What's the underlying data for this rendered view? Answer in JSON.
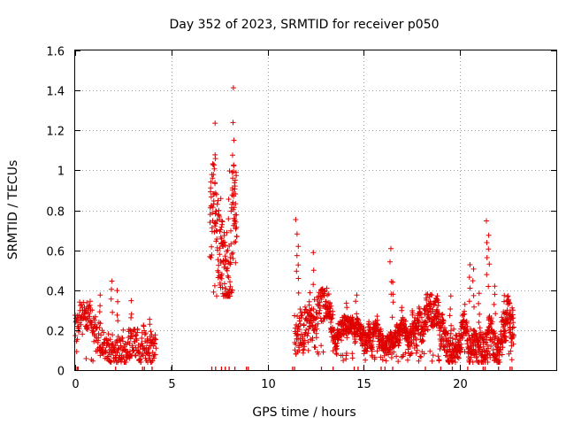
{
  "chart_data": {
    "type": "scatter",
    "title": "Day 352 of 2023, SRMTID for receiver p050",
    "xlabel": "GPS time / hours",
    "ylabel": "SRMTID / TECUs",
    "xlim": [
      0,
      25
    ],
    "ylim": [
      0,
      1.6
    ],
    "xticks": [
      0,
      5,
      10,
      15,
      20
    ],
    "yticks": [
      0,
      0.2,
      0.4,
      0.6,
      0.8,
      1,
      1.2,
      1.4,
      1.6
    ],
    "xtick_labels": [
      "0",
      "5",
      "10",
      "15",
      "20"
    ],
    "ytick_labels": [
      "0",
      "0.2",
      "0.4",
      "0.6",
      "0.8",
      "1",
      "1.2",
      "1.4",
      "1.6"
    ],
    "grid": true,
    "marker": "+",
    "series_color": "#e00000",
    "segments": [
      {
        "start": 0.0,
        "end": 4.2,
        "low": 0.04,
        "high": 0.47,
        "base": 0.2,
        "spread": 0.09,
        "step": 0.013
      },
      {
        "start": 7.0,
        "end": 8.4,
        "low": 0.37,
        "high": 1.44,
        "base": 0.75,
        "spread": 0.25,
        "step": 0.008
      },
      {
        "start": 11.4,
        "end": 13.4,
        "low": 0.08,
        "high": 0.78,
        "base": 0.22,
        "spread": 0.11,
        "step": 0.01
      },
      {
        "start": 13.4,
        "end": 17.5,
        "low": 0.04,
        "high": 0.62,
        "base": 0.17,
        "spread": 0.06,
        "step": 0.008
      },
      {
        "start": 17.5,
        "end": 22.8,
        "low": 0.04,
        "high": 0.75,
        "base": 0.22,
        "spread": 0.1,
        "step": 0.008
      }
    ],
    "peaks": [
      {
        "x": 0.6,
        "y": 0.36
      },
      {
        "x": 1.3,
        "y": 0.4
      },
      {
        "x": 1.9,
        "y": 0.47
      },
      {
        "x": 2.2,
        "y": 0.4
      },
      {
        "x": 2.9,
        "y": 0.35
      },
      {
        "x": 3.9,
        "y": 0.28
      },
      {
        "x": 7.3,
        "y": 1.24
      },
      {
        "x": 7.6,
        "y": 0.87
      },
      {
        "x": 8.0,
        "y": 1.0
      },
      {
        "x": 8.2,
        "y": 1.44
      },
      {
        "x": 8.25,
        "y": 1.18
      },
      {
        "x": 8.3,
        "y": 0.86
      },
      {
        "x": 11.5,
        "y": 0.78
      },
      {
        "x": 11.6,
        "y": 0.63
      },
      {
        "x": 12.4,
        "y": 0.59
      },
      {
        "x": 12.2,
        "y": 0.4
      },
      {
        "x": 13.3,
        "y": 0.34
      },
      {
        "x": 14.1,
        "y": 0.36
      },
      {
        "x": 14.6,
        "y": 0.4
      },
      {
        "x": 16.4,
        "y": 0.62
      },
      {
        "x": 16.5,
        "y": 0.45
      },
      {
        "x": 17.0,
        "y": 0.34
      },
      {
        "x": 18.8,
        "y": 0.36
      },
      {
        "x": 19.5,
        "y": 0.38
      },
      {
        "x": 20.5,
        "y": 0.55
      },
      {
        "x": 20.7,
        "y": 0.51
      },
      {
        "x": 21.0,
        "y": 0.4
      },
      {
        "x": 21.4,
        "y": 0.75
      },
      {
        "x": 21.5,
        "y": 0.7
      },
      {
        "x": 21.8,
        "y": 0.45
      },
      {
        "x": 22.3,
        "y": 0.4
      },
      {
        "x": 22.6,
        "y": 0.27
      }
    ],
    "zero_x": [
      0.1,
      0.15,
      2.1,
      3.5,
      3.6,
      4.0,
      5.0,
      7.1,
      7.3,
      7.6,
      7.8,
      8.0,
      8.3,
      8.9,
      9.0,
      11.3,
      11.4,
      12.8,
      13.4,
      14.5,
      14.7,
      15.0,
      15.9,
      16.1,
      16.5,
      18.2,
      19.0,
      19.6,
      20.4,
      21.2,
      21.3,
      22.0,
      22.6,
      22.7
    ]
  }
}
